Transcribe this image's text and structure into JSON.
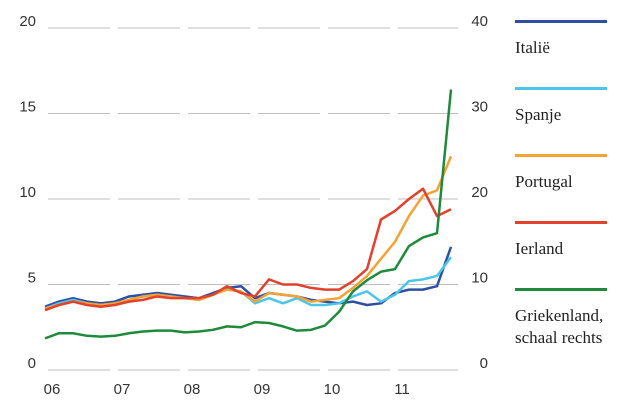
{
  "chart_data": {
    "type": "line",
    "x": [
      5.9,
      6.1,
      6.3,
      6.5,
      6.7,
      6.9,
      7.1,
      7.3,
      7.5,
      7.7,
      7.9,
      8.1,
      8.3,
      8.5,
      8.7,
      8.9,
      9.1,
      9.3,
      9.5,
      9.7,
      9.9,
      10.1,
      10.3,
      10.5,
      10.7,
      10.9,
      11.1,
      11.3,
      11.5,
      11.7
    ],
    "xlim": [
      5.8,
      11.8
    ],
    "xticks": [
      {
        "value": 6,
        "label": "06"
      },
      {
        "value": 7,
        "label": "07"
      },
      {
        "value": 8,
        "label": "08"
      },
      {
        "value": 9,
        "label": "09"
      },
      {
        "value": 10,
        "label": "10"
      },
      {
        "value": 11,
        "label": "11"
      }
    ],
    "ylim": [
      0,
      20
    ],
    "yticks": [
      0,
      5,
      10,
      15,
      20
    ],
    "y2lim": [
      0,
      40
    ],
    "y2ticks": [
      0,
      10,
      20,
      30,
      40
    ],
    "grid": true,
    "series": [
      {
        "name": "Italië",
        "color": "#2f4fa2",
        "values": [
          3.7,
          4.0,
          4.2,
          4.0,
          3.9,
          4.0,
          4.3,
          4.4,
          4.5,
          4.4,
          4.3,
          4.2,
          4.5,
          4.8,
          4.9,
          4.2,
          4.5,
          4.4,
          4.3,
          4.1,
          4.0,
          3.9,
          4.0,
          3.8,
          3.9,
          4.5,
          4.7,
          4.7,
          4.9,
          7.2
        ]
      },
      {
        "name": "Spanje",
        "color": "#4cc6e8",
        "values": [
          3.6,
          3.9,
          4.1,
          3.9,
          3.8,
          3.9,
          4.1,
          4.3,
          4.4,
          4.3,
          4.2,
          4.1,
          4.4,
          4.7,
          4.6,
          3.9,
          4.2,
          3.9,
          4.2,
          3.8,
          3.8,
          3.9,
          4.3,
          4.6,
          4.0,
          4.4,
          5.2,
          5.3,
          5.5,
          6.6
        ]
      },
      {
        "name": "Portugal",
        "color": "#f5a234",
        "values": [
          3.6,
          3.8,
          4.0,
          3.9,
          3.8,
          3.9,
          4.1,
          4.3,
          4.4,
          4.3,
          4.2,
          4.1,
          4.4,
          4.7,
          4.6,
          4.0,
          4.5,
          4.4,
          4.3,
          4.0,
          4.1,
          4.2,
          4.8,
          5.5,
          6.5,
          7.5,
          9.0,
          10.2,
          10.5,
          12.5
        ]
      },
      {
        "name": "Ierland",
        "color": "#e2412c",
        "values": [
          3.5,
          3.8,
          4.0,
          3.8,
          3.7,
          3.8,
          4.0,
          4.1,
          4.3,
          4.2,
          4.2,
          4.2,
          4.4,
          4.9,
          4.5,
          4.3,
          5.3,
          5.0,
          5.0,
          4.8,
          4.7,
          4.7,
          5.2,
          5.9,
          8.8,
          9.3,
          10.0,
          10.6,
          9.0,
          9.4
        ]
      },
      {
        "name": "Griekenland, schaal rechts",
        "color": "#1f8a3c",
        "axis": "y2",
        "values": [
          3.7,
          4.3,
          4.3,
          4.0,
          3.9,
          4.0,
          4.3,
          4.5,
          4.6,
          4.6,
          4.4,
          4.5,
          4.7,
          5.1,
          5.0,
          5.6,
          5.5,
          5.1,
          4.6,
          4.7,
          5.2,
          6.8,
          9.2,
          10.5,
          11.5,
          11.8,
          14.5,
          15.5,
          16.0,
          32.8
        ]
      }
    ]
  }
}
